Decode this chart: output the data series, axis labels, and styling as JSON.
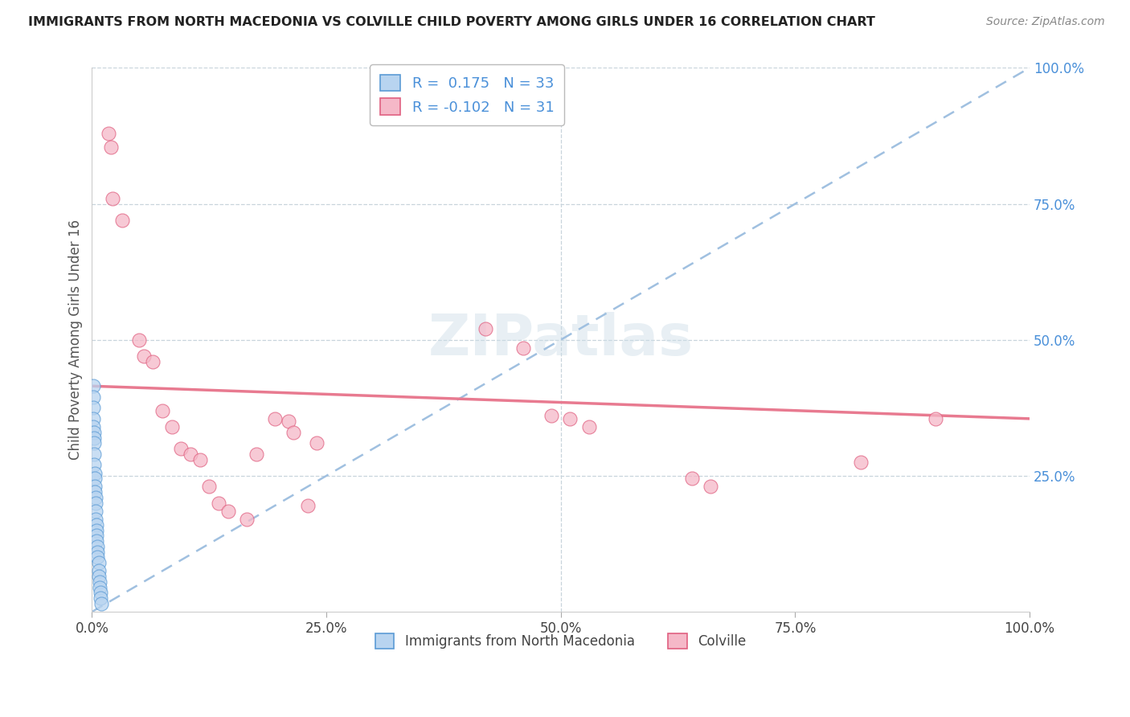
{
  "title": "IMMIGRANTS FROM NORTH MACEDONIA VS COLVILLE CHILD POVERTY AMONG GIRLS UNDER 16 CORRELATION CHART",
  "source": "Source: ZipAtlas.com",
  "ylabel": "Child Poverty Among Girls Under 16",
  "xlim": [
    0,
    1.0
  ],
  "ylim": [
    0,
    1.0
  ],
  "xtick_labels": [
    "0.0%",
    "25.0%",
    "50.0%",
    "75.0%",
    "100.0%"
  ],
  "xtick_vals": [
    0.0,
    0.25,
    0.5,
    0.75,
    1.0
  ],
  "ytick_right_labels": [
    "100.0%",
    "75.0%",
    "50.0%",
    "25.0%"
  ],
  "ytick_right_vals": [
    1.0,
    0.75,
    0.5,
    0.25
  ],
  "legend_blue_label": "Immigrants from North Macedonia",
  "legend_pink_label": "Colville",
  "blue_R": "0.175",
  "blue_N": "33",
  "pink_R": "-0.102",
  "pink_N": "31",
  "blue_fill": "#b8d4f0",
  "blue_edge": "#5b9bd5",
  "pink_fill": "#f5b8c8",
  "pink_edge": "#e06080",
  "pink_trendline": "#e87a90",
  "blue_trendline": "#a0c0e0",
  "grid_color": "#c8d4dc",
  "watermark": "ZIPatlas",
  "blue_scatter_x": [
    0.001,
    0.001,
    0.001,
    0.001,
    0.001,
    0.002,
    0.002,
    0.002,
    0.002,
    0.002,
    0.003,
    0.003,
    0.003,
    0.003,
    0.004,
    0.004,
    0.004,
    0.004,
    0.005,
    0.005,
    0.005,
    0.005,
    0.006,
    0.006,
    0.006,
    0.007,
    0.007,
    0.007,
    0.008,
    0.008,
    0.009,
    0.009,
    0.01
  ],
  "blue_scatter_y": [
    0.415,
    0.395,
    0.375,
    0.355,
    0.34,
    0.33,
    0.32,
    0.31,
    0.29,
    0.27,
    0.255,
    0.245,
    0.23,
    0.22,
    0.21,
    0.2,
    0.185,
    0.17,
    0.16,
    0.15,
    0.14,
    0.13,
    0.12,
    0.11,
    0.1,
    0.09,
    0.075,
    0.065,
    0.055,
    0.045,
    0.035,
    0.025,
    0.015
  ],
  "pink_scatter_x": [
    0.018,
    0.02,
    0.022,
    0.032,
    0.05,
    0.055,
    0.065,
    0.075,
    0.085,
    0.095,
    0.105,
    0.115,
    0.125,
    0.135,
    0.145,
    0.165,
    0.175,
    0.195,
    0.21,
    0.215,
    0.23,
    0.24,
    0.42,
    0.46,
    0.49,
    0.51,
    0.53,
    0.64,
    0.66,
    0.82,
    0.9
  ],
  "pink_scatter_y": [
    0.88,
    0.855,
    0.76,
    0.72,
    0.5,
    0.47,
    0.46,
    0.37,
    0.34,
    0.3,
    0.29,
    0.28,
    0.23,
    0.2,
    0.185,
    0.17,
    0.29,
    0.355,
    0.35,
    0.33,
    0.195,
    0.31,
    0.52,
    0.485,
    0.36,
    0.355,
    0.34,
    0.245,
    0.23,
    0.275,
    0.355
  ],
  "blue_trend_x0": 0.0,
  "blue_trend_y0": 0.0,
  "blue_trend_x1": 1.0,
  "blue_trend_y1": 1.0,
  "pink_trend_x0": 0.0,
  "pink_trend_y0": 0.415,
  "pink_trend_x1": 1.0,
  "pink_trend_y1": 0.355
}
